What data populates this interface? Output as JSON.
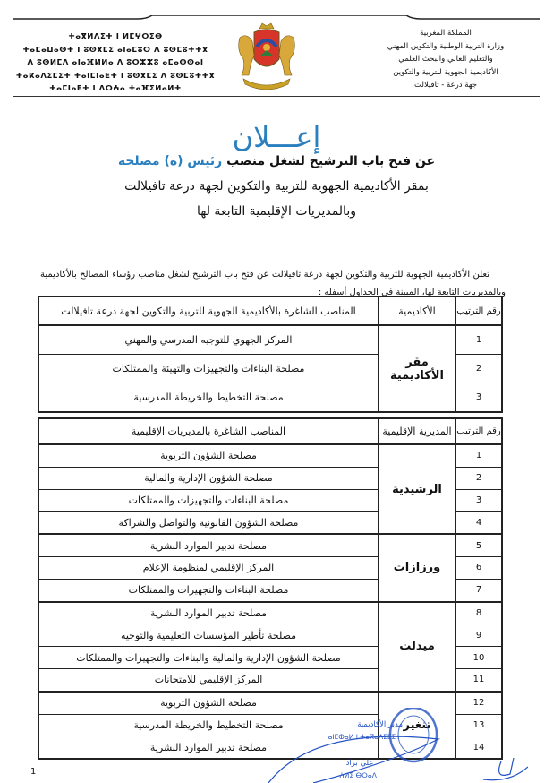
{
  "header": {
    "tifinagh_lines": [
      "ⵜⴰⴳⵍⴷⵉⵜ ⵏ ⵍⵎⵖⵔⵉⴱ",
      "ⵜⴰⵎⴰⵡⴰⵙⵜ ⵏ ⵓⵙⴳⵎⵉ ⴰⵏⴰⵎⵓⵔ ⴷ ⵓⵙⵎⵓⵜⵜⴳ",
      "ⴷ ⵓⵙⵍⵎⴷ ⴰⵏⴰⴼⵍⵍⴰ ⴷ ⵓⵔⵣⵣⵓ ⴰⵎⴰⵙⵙⴰⵏ",
      "ⵜⴰⴽⴰⴷⵉⵎⵉⵜ ⵜⴰⵏⵎⵏⴰⴹⵜ ⵏ ⵓⵙⴳⵎⵉ ⴷ ⵓⵙⵎⵓⵜⵜⴳ",
      "ⵜⴰⵎⵏⴰⴹⵜ ⵏ ⴷⵔⵄⴰ ⵜⴰⴼⵉⵍⴰⵍⵜ"
    ],
    "arabic_lines": [
      "المملكة المغربية",
      "وزارة التربية الوطنية والتكوين المهني",
      "والتعليم العالي والبحث العلمي",
      "الأكاديمية الجهوية للتربية والتكوين",
      "جهة درعة - تافيلالت"
    ]
  },
  "title": "إعـــلان",
  "subtitle": {
    "line1_a": "عن فتح باب الترشيح لشغل منصب ",
    "line1_b": "رئيس (ة) مصلحة",
    "line2": "بمقر الأكاديمية الجهوية للتربية والتكوين لجهة درعة تافيلالت",
    "line3": "وبالمديريات الإقليمية التابعة لها"
  },
  "intro": "تعلن الأكاديمية الجهوية للتربية والتكوين لجهة درعة تافيلالت عن فتح باب الترشيح لشغل مناصب رؤساء المصالح بالأكاديمية وبالمديريات التابعة لها، المبينة في الجداول أسفله :",
  "table1": {
    "headers": [
      "رقم الترتيب",
      "الأكاديمية",
      "المناصب الشاغرة بالأكاديمية الجهوية للتربية والتكوين لجهة درعة تافيلالت"
    ],
    "group": "مقر الأكاديمية",
    "rows": [
      {
        "num": "1",
        "post": "المركز الجهوي للتوجيه المدرسي والمهني"
      },
      {
        "num": "2",
        "post": "مصلحة البناءات والتجهيزات والتهيئة والممتلكات"
      },
      {
        "num": "3",
        "post": "مصلحة التخطيط والخريطة المدرسية"
      }
    ]
  },
  "table2": {
    "headers": [
      "رقم الترتيب",
      "المديرية الإقليمية",
      "المناصب الشاغرة بالمديريات الإقليمية"
    ],
    "groups": [
      {
        "name": "الرشيدية",
        "rows": [
          {
            "num": "1",
            "post": "مصلحة الشؤون التربوية"
          },
          {
            "num": "2",
            "post": "مصلحة الشؤون الإدارية والمالية"
          },
          {
            "num": "3",
            "post": "مصلحة البناءات والتجهيزات والممتلكات"
          },
          {
            "num": "4",
            "post": "مصلحة الشؤون القانونية والتواصل والشراكة"
          }
        ]
      },
      {
        "name": "ورزازات",
        "rows": [
          {
            "num": "5",
            "post": "مصلحة تدبير الموارد البشرية"
          },
          {
            "num": "6",
            "post": "المركز الإقليمي لمنظومة الإعلام"
          },
          {
            "num": "7",
            "post": "مصلحة البناءات والتجهيزات والممتلكات"
          }
        ]
      },
      {
        "name": "ميدلت",
        "rows": [
          {
            "num": "8",
            "post": "مصلحة تدبير الموارد البشرية"
          },
          {
            "num": "9",
            "post": "مصلحة تأطير المؤسسات التعليمية والتوجيه"
          },
          {
            "num": "10",
            "post": "مصلحة الشؤون الإدارية والمالية والبناءات والتجهيزات والممتلكات"
          },
          {
            "num": "11",
            "post": "المركز الإقليمي للامتحانات"
          }
        ]
      },
      {
        "name": "تنغير",
        "rows": [
          {
            "num": "12",
            "post": "مصلحة الشؤون التربوية"
          },
          {
            "num": "13",
            "post": "مصلحة التخطيط والخريطة المدرسية"
          },
          {
            "num": "14",
            "post": "مصلحة تدبير الموارد البشرية"
          }
        ]
      }
    ]
  },
  "signature": {
    "title": "مدير الأكاديمية",
    "title_tifinagh": "ⴰⵏⵎⵀⴰⵍ ⵏ ⵜⴰⴽⴰⴷⵉⵎⵉⵜ",
    "name": "علي براد",
    "name_tifinagh": "ⵄⵍⵉ ⴱⵔⴰⴷ"
  },
  "page_number": "1",
  "colors": {
    "accent": "#2a7fbf",
    "stamp": "#2453c4"
  }
}
